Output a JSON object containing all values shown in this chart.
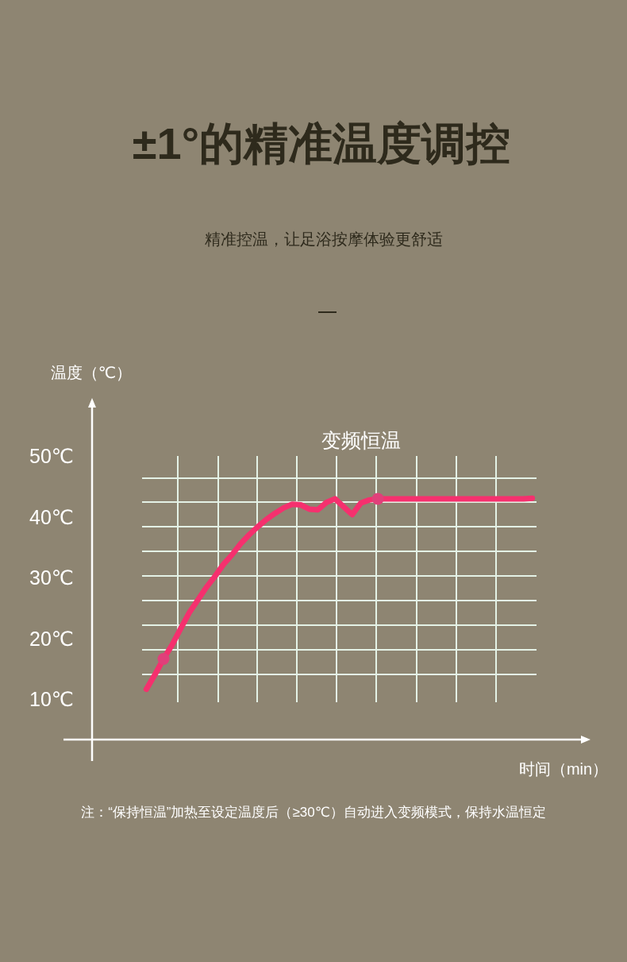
{
  "chart_data": {
    "type": "line",
    "title": "±1°的精准温度调控",
    "subtitle": "精准控温，让足浴按摩体验更舒适",
    "annotations": [
      "变频恒温",
      "注：“保持恒温”加热至设定温度后（≥30℃）自动进入变频模式，保持水温恒定"
    ],
    "ylabel": "温度（℃）",
    "xlabel": "时间（min）",
    "categories": [
      null,
      null,
      null,
      null,
      null,
      null,
      null,
      null,
      null,
      null,
      null,
      null,
      null,
      null,
      null,
      null,
      null,
      null,
      null,
      null,
      null,
      null,
      null,
      null,
      null,
      null,
      null,
      null,
      null,
      null,
      null,
      null,
      null,
      null,
      null,
      null,
      null,
      null,
      null,
      null,
      null,
      null,
      null,
      null,
      null,
      null
    ],
    "series": [
      {
        "color": "#f5306e",
        "values": [
          11.6,
          14.0,
          16.6,
          18.9,
          21.6,
          24.2,
          26.3,
          28.4,
          30.2,
          32.2,
          33.8,
          35.6,
          37.1,
          38.4,
          39.6,
          40.6,
          41.5,
          42.1,
          42.0,
          41.3,
          41.2,
          42.4,
          43.0,
          41.7,
          40.4,
          42.3,
          42.8,
          43.0,
          43.0,
          43.0,
          43.0,
          43.0,
          43.0,
          43.0,
          43.0,
          43.0,
          43.0,
          43.0,
          43.0,
          43.0,
          43.0,
          43.0,
          43.0,
          43.0,
          43.0,
          43.1
        ]
      },
      {
        "type": "scatter",
        "marker": "circle",
        "color": "#e0407a",
        "values": [
          null,
          null,
          16.6,
          null,
          null,
          null,
          null,
          null,
          null,
          null,
          null,
          null,
          null,
          null,
          null,
          null,
          null,
          null,
          null,
          null,
          null,
          null,
          null,
          null,
          null,
          null,
          null,
          43.0,
          null,
          null,
          null,
          null,
          null,
          null,
          null,
          null,
          null,
          null,
          null,
          null,
          null,
          null,
          null,
          null,
          null,
          null
        ]
      }
    ],
    "ylim": [
      3.3,
      59.1
    ],
    "yticks": [
      {
        "value": 50,
        "label": "50℃"
      },
      {
        "value": 40,
        "label": "40℃"
      },
      {
        "value": 30,
        "label": "30℃"
      },
      {
        "value": 20,
        "label": "20℃"
      },
      {
        "value": 10,
        "label": "10℃"
      }
    ],
    "grid": true,
    "marker": "none",
    "line_style": "solid"
  }
}
